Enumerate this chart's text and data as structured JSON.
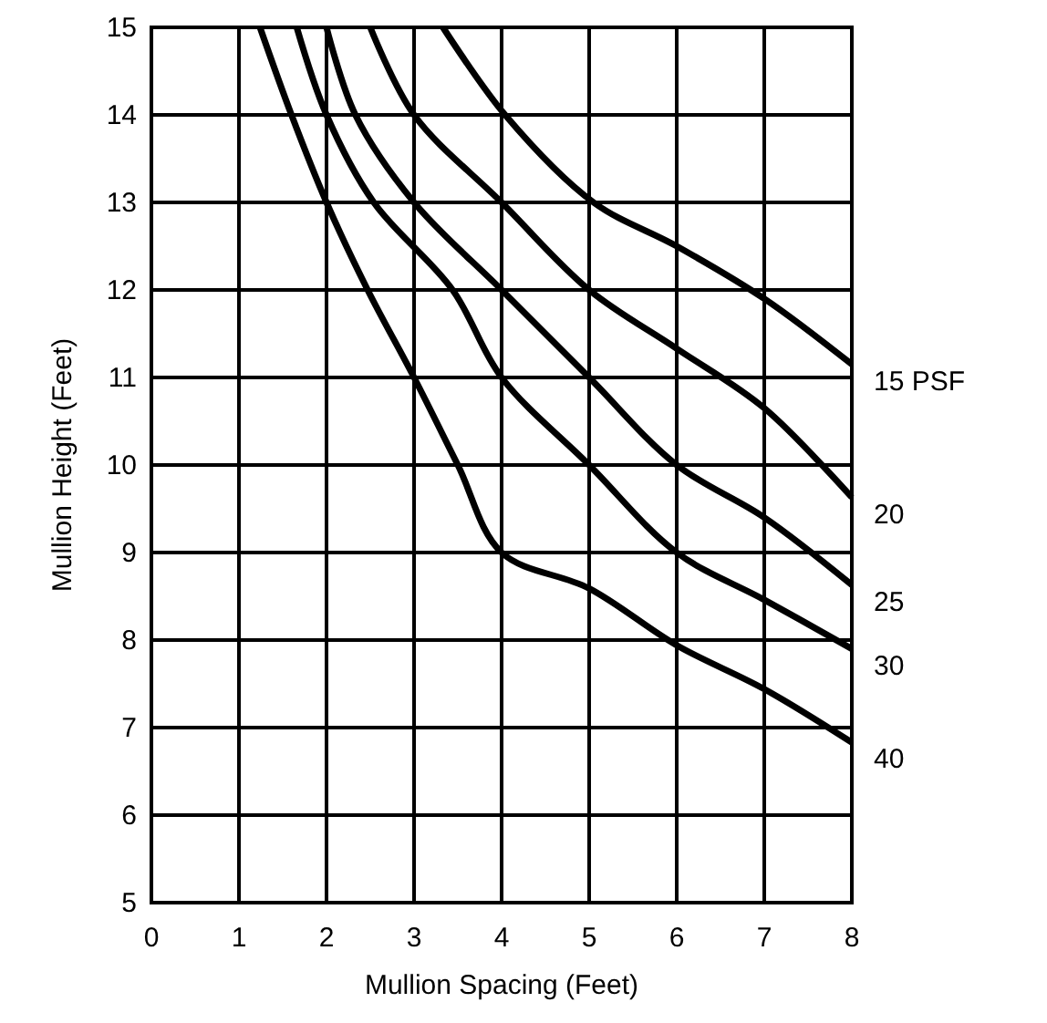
{
  "chart_data": {
    "type": "line",
    "xlabel": "Mullion Spacing (Feet)",
    "ylabel": "Mullion Height (Feet)",
    "xlim": [
      0,
      8
    ],
    "ylim": [
      5,
      15
    ],
    "xticks": [
      0,
      1,
      2,
      3,
      4,
      5,
      6,
      7,
      8
    ],
    "yticks": [
      5,
      6,
      7,
      8,
      9,
      10,
      11,
      12,
      13,
      14,
      15
    ],
    "grid": true,
    "marker": "none",
    "line_style": "solid",
    "series": [
      {
        "name": "15 PSF",
        "color": "#000000",
        "x": [
          3.33,
          4.04,
          5.05,
          6,
          7,
          8
        ],
        "values": [
          15,
          14,
          13,
          12.5,
          11.9,
          11.15
        ]
      },
      {
        "name": "20",
        "color": "#000000",
        "x": [
          2.5,
          3,
          4,
          5,
          6,
          7,
          8
        ],
        "values": [
          15,
          14,
          13,
          12,
          11.33,
          10.65,
          9.63
        ]
      },
      {
        "name": "25",
        "color": "#000000",
        "x": [
          2,
          2.33,
          3,
          4,
          5,
          6,
          7,
          8
        ],
        "values": [
          15,
          14,
          13,
          12,
          11,
          10,
          9.4,
          8.63
        ]
      },
      {
        "name": "30",
        "color": "#000000",
        "x": [
          1.66,
          2,
          2.54,
          3.44,
          4,
          5,
          6,
          7,
          8
        ],
        "values": [
          15,
          14,
          13,
          12,
          11,
          10,
          9,
          8.46,
          7.9
        ]
      },
      {
        "name": "40",
        "color": "#000000",
        "x": [
          1.24,
          1.6,
          2,
          2.47,
          3,
          3.5,
          4,
          5,
          6,
          7,
          8
        ],
        "values": [
          15,
          14,
          13,
          12,
          11,
          10,
          9,
          8.59,
          7.94,
          7.44,
          6.83
        ]
      }
    ]
  }
}
